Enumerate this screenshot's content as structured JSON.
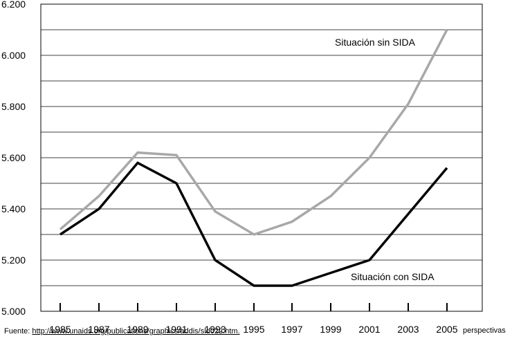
{
  "chart_data": {
    "type": "line",
    "x": [
      "1985",
      "1987",
      "1989",
      "1991",
      "1993",
      "1995",
      "1997",
      "1999",
      "2001",
      "2003",
      "2005"
    ],
    "x_note": "perspectivas",
    "ylim": [
      5000,
      6200
    ],
    "yticks": [
      5000,
      5200,
      5400,
      5600,
      5800,
      6000,
      6200
    ],
    "ytick_labels": [
      "5.000",
      "5.200",
      "5.400",
      "5.600",
      "5.800",
      "6.000",
      "6.200"
    ],
    "grid": true,
    "series": [
      {
        "name": "Situación sin SIDA",
        "color": "#a8a8a8",
        "values": [
          5320,
          5450,
          5620,
          5610,
          5390,
          5300,
          5350,
          5450,
          5600,
          5810,
          6100
        ]
      },
      {
        "name": "Situación con SIDA",
        "color": "#000000",
        "values": [
          5300,
          5400,
          5580,
          5500,
          5200,
          5100,
          5100,
          5150,
          5200,
          5380,
          5560
        ]
      }
    ]
  },
  "source": {
    "prefix": "Fuente: ",
    "link": "http://www.unaids.org/publications/graphics/addis/sld022.htm."
  }
}
